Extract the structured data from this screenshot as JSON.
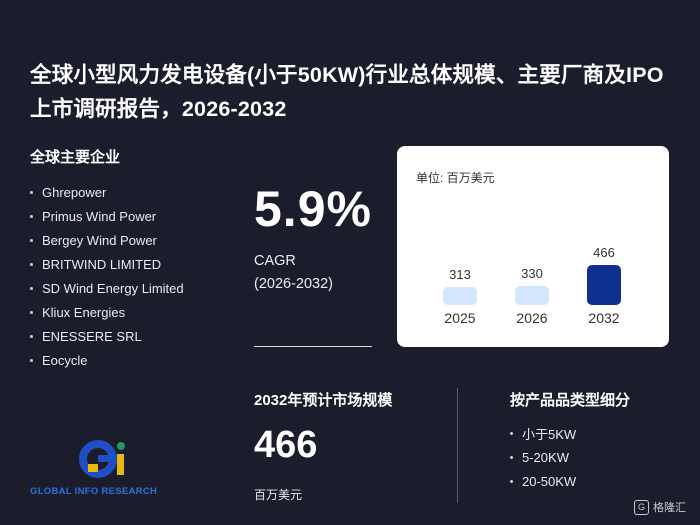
{
  "title": "全球小型风力发电设备(小于50KW)行业总体规模、主要厂商及IPO上市调研报告，2026-2032",
  "vendors_title": "全球主要企业",
  "vendors": [
    "Ghrepower",
    "Primus Wind Power",
    "Bergey Wind Power",
    "BRITWIND LIMITED",
    "SD Wind Energy Limited",
    "Kliux Energies",
    "ENESSERE SRL",
    "Eocycle"
  ],
  "cagr": {
    "value": "5.9%",
    "label": "CAGR",
    "period": "(2026-2032)"
  },
  "chart_data": {
    "type": "bar",
    "unit_label": "单位: 百万美元",
    "categories": [
      "2025",
      "2026",
      "2032"
    ],
    "values": [
      313,
      330,
      466
    ],
    "colors": [
      "#d4e6fb",
      "#d4e6fb",
      "#10308f"
    ]
  },
  "market": {
    "title": "2032年预计市场规模",
    "value": "466",
    "unit": "百万美元"
  },
  "segments_title": "按产品品类型细分",
  "segments": [
    "小于5KW",
    "5-20KW",
    "20-50KW"
  ],
  "logo": {
    "text": "GLOBAL INFO RESEARCH",
    "mark": "Gi",
    "color_primary": "#1f4fc4",
    "color_accent": "#e8b80c",
    "color_green": "#1d9c5a"
  },
  "watermark": {
    "text": "格隆汇",
    "icon": "G"
  },
  "colors": {
    "background": "#1b1d2c",
    "card": "#ffffff"
  }
}
